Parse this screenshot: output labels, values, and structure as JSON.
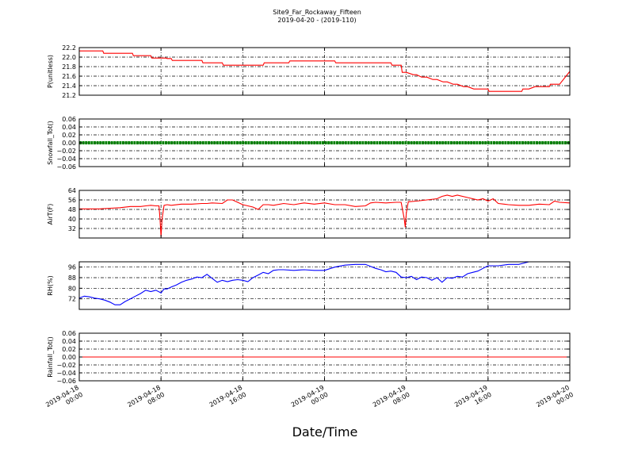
{
  "title": "Site9_Far_Rockaway_Fifteen",
  "subtitle": "2019-04-20 - (2019-110)",
  "xlabel": "Date/Time",
  "x_tick_labels": [
    [
      "2019-04-18",
      "00:00"
    ],
    [
      "2019-04-18",
      "08:00"
    ],
    [
      "2019-04-18",
      "16:00"
    ],
    [
      "2019-04-19",
      "00:00"
    ],
    [
      "2019-04-19",
      "08:00"
    ],
    [
      "2019-04-19",
      "16:00"
    ],
    [
      "2019-04-20",
      "00:00"
    ]
  ],
  "chart_data": [
    {
      "type": "line",
      "ylabel": "P(unitless)",
      "ylim": [
        21.2,
        22.2
      ],
      "yticks": [
        "21.2",
        "21.4",
        "21.6",
        "21.8",
        "22.0",
        "22.2"
      ],
      "xlim_hours": [
        0,
        48
      ],
      "grid": true,
      "color": "#ff0000",
      "series": [
        {
          "x": [
            0,
            2.3,
            2.4,
            5.2,
            5.3,
            7,
            7.1,
            8.5,
            8.6,
            9,
            9.1,
            12,
            12.1,
            14,
            14.1,
            15,
            15.1,
            18,
            18.1,
            20.5,
            20.6,
            25,
            25.1,
            30.5,
            30.6,
            31.5,
            31.6,
            32,
            32.7,
            33,
            33.5,
            34,
            34.6,
            35,
            35.6,
            36,
            36.6,
            37,
            37.6,
            38,
            38.6,
            40,
            40.1,
            42,
            42.1,
            43.3,
            43.4,
            44,
            44.6,
            46,
            46.1,
            47,
            48
          ],
          "y": [
            22.13,
            22.13,
            22.08,
            22.08,
            22.03,
            22.03,
            21.98,
            21.98,
            21.97,
            21.97,
            21.93,
            21.93,
            21.88,
            21.88,
            21.83,
            21.83,
            21.83,
            21.83,
            21.88,
            21.88,
            21.92,
            21.92,
            21.88,
            21.88,
            21.83,
            21.83,
            21.68,
            21.68,
            21.63,
            21.63,
            21.58,
            21.58,
            21.53,
            21.53,
            21.48,
            21.48,
            21.43,
            21.43,
            21.38,
            21.38,
            21.33,
            21.33,
            21.28,
            21.28,
            21.28,
            21.28,
            21.33,
            21.33,
            21.38,
            21.38,
            21.43,
            21.43,
            21.7
          ]
        }
      ]
    },
    {
      "type": "scatter",
      "ylabel": "Snowfall_Tot()",
      "ylim": [
        -0.06,
        0.06
      ],
      "yticks": [
        "−0.06",
        "−0.04",
        "−0.02",
        "0.00",
        "0.02",
        "0.04",
        "0.06"
      ],
      "xlim_hours": [
        0,
        48
      ],
      "grid": true,
      "color": "#008000",
      "series": [
        {
          "x_range_hours": [
            0,
            48
          ],
          "value": 0.0
        }
      ]
    },
    {
      "type": "line",
      "ylabel": "AirT(F)",
      "ylim": [
        24,
        64
      ],
      "yticks": [
        "32",
        "40",
        "48",
        "56",
        "64"
      ],
      "xlim_hours": [
        0,
        48
      ],
      "grid": true,
      "color": "#ff0000",
      "series": [
        {
          "x": [
            0,
            1,
            2,
            3,
            4,
            5,
            6,
            6.5,
            7,
            7.5,
            7.8,
            7.9,
            8.0,
            8.1,
            8.3,
            8.6,
            9,
            10,
            11,
            12,
            12.5,
            13,
            14,
            14.5,
            15,
            15.5,
            16,
            17,
            17.5,
            18,
            18.5,
            19,
            20,
            21,
            22,
            23,
            24,
            25,
            26,
            27,
            28,
            28.5,
            29,
            30,
            31,
            31.5,
            31.8,
            31.9,
            32.0,
            32.2,
            33,
            34,
            35,
            35.5,
            36,
            36.5,
            37,
            38,
            39,
            39.5,
            40,
            40.5,
            41,
            42,
            43,
            44,
            45,
            46,
            46.5,
            47,
            48
          ],
          "y": [
            48.5,
            48.5,
            48.5,
            49,
            49.5,
            50.5,
            50.5,
            51,
            51.5,
            51,
            51,
            40,
            25,
            40,
            51.5,
            52,
            51.5,
            52.5,
            52.5,
            53,
            53,
            53.5,
            53,
            56,
            56,
            54,
            52,
            50,
            48,
            52,
            52,
            51.5,
            53,
            52,
            53.5,
            52.5,
            53.5,
            52,
            52,
            50.5,
            51,
            53.5,
            54,
            53.5,
            54,
            54,
            40,
            33,
            45,
            54.5,
            55,
            56,
            57,
            59,
            60,
            59,
            60,
            58,
            56,
            57,
            55,
            57,
            53,
            52,
            51.5,
            51.5,
            52.5,
            52,
            55,
            54,
            53.5
          ]
        }
      ]
    },
    {
      "type": "line",
      "ylabel": "RH(%)",
      "ylim": [
        64,
        100
      ],
      "yticks": [
        "72",
        "80",
        "88",
        "96"
      ],
      "xlim_hours": [
        0,
        48
      ],
      "grid": true,
      "color": "#0000ff",
      "series": [
        {
          "x": [
            0,
            0.5,
            1,
            1.5,
            2,
            2.5,
            3,
            3.5,
            4,
            4.5,
            5,
            5.5,
            6,
            6.5,
            7,
            7.5,
            8,
            8.3,
            8.6,
            9,
            9.5,
            10,
            10.5,
            11,
            11.5,
            12,
            12.5,
            13,
            13.5,
            14,
            14.5,
            15,
            15.5,
            16,
            16.5,
            17,
            17.5,
            18,
            18.5,
            19,
            19.5,
            20,
            21,
            22,
            23,
            24,
            25,
            26,
            27,
            28,
            28.5,
            29,
            29.5,
            30,
            30.5,
            31,
            31.5,
            32,
            32.5,
            33,
            33.5,
            34,
            34.5,
            35,
            35.5,
            36,
            36.5,
            37,
            37.5,
            38,
            38.5,
            39,
            39.5,
            40,
            40.5,
            41,
            42,
            43,
            44,
            48
          ],
          "y": [
            72.5,
            74,
            73.5,
            72.5,
            72,
            71,
            69.5,
            67.5,
            67.5,
            70,
            72,
            74,
            76,
            78.5,
            77.5,
            78.5,
            76.5,
            79.5,
            79.5,
            81,
            82.5,
            84.5,
            86,
            87,
            88.5,
            88,
            90.5,
            87.5,
            84.5,
            86,
            85,
            86,
            86.5,
            86,
            85,
            88,
            90,
            92,
            91,
            93.5,
            94,
            94,
            93.5,
            94,
            93.5,
            93.5,
            96,
            97.5,
            98,
            98,
            96.5,
            95,
            94,
            92.5,
            93,
            92,
            88.5,
            88,
            89,
            86.5,
            88.5,
            88,
            86,
            88,
            84.5,
            88,
            87.5,
            89,
            88.5,
            91,
            92,
            93,
            95,
            97,
            97,
            97,
            98,
            98,
            100,
            100
          ]
        }
      ]
    },
    {
      "type": "line",
      "ylabel": "Rainfall_Tot()",
      "ylim": [
        -0.06,
        0.06
      ],
      "yticks": [
        "−0.06",
        "−0.04",
        "−0.02",
        "0.00",
        "0.02",
        "0.04",
        "0.06"
      ],
      "xlim_hours": [
        0,
        48
      ],
      "grid": true,
      "color": "#ff0000",
      "series": [
        {
          "x": [
            0,
            48
          ],
          "y": [
            0.0,
            0.0
          ]
        }
      ]
    }
  ]
}
